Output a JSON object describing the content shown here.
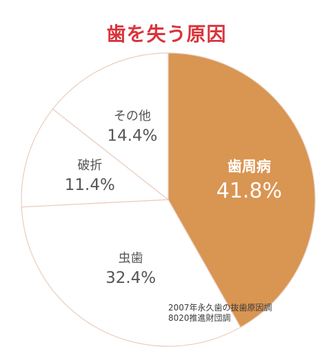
{
  "chart_data": {
    "type": "pie",
    "title": "歯を失う原因",
    "categories": [
      "歯周病",
      "虫歯",
      "破折",
      "その他"
    ],
    "values": [
      41.8,
      32.4,
      11.4,
      14.4
    ],
    "value_labels": [
      "41.8%",
      "32.4%",
      "11.4%",
      "14.4%"
    ],
    "colors": [
      "#d99552",
      "#ffffff",
      "#ffffff",
      "#ffffff"
    ],
    "label_colors": [
      "#ffffff",
      "#555555",
      "#555555",
      "#555555"
    ],
    "edge_color": "#e8cdbf",
    "start": "12 o'clock",
    "direction": "clockwise"
  },
  "source_note": {
    "line1": "2007年永久歯の抜歯原因調",
    "line2": "8020推進財団調"
  }
}
